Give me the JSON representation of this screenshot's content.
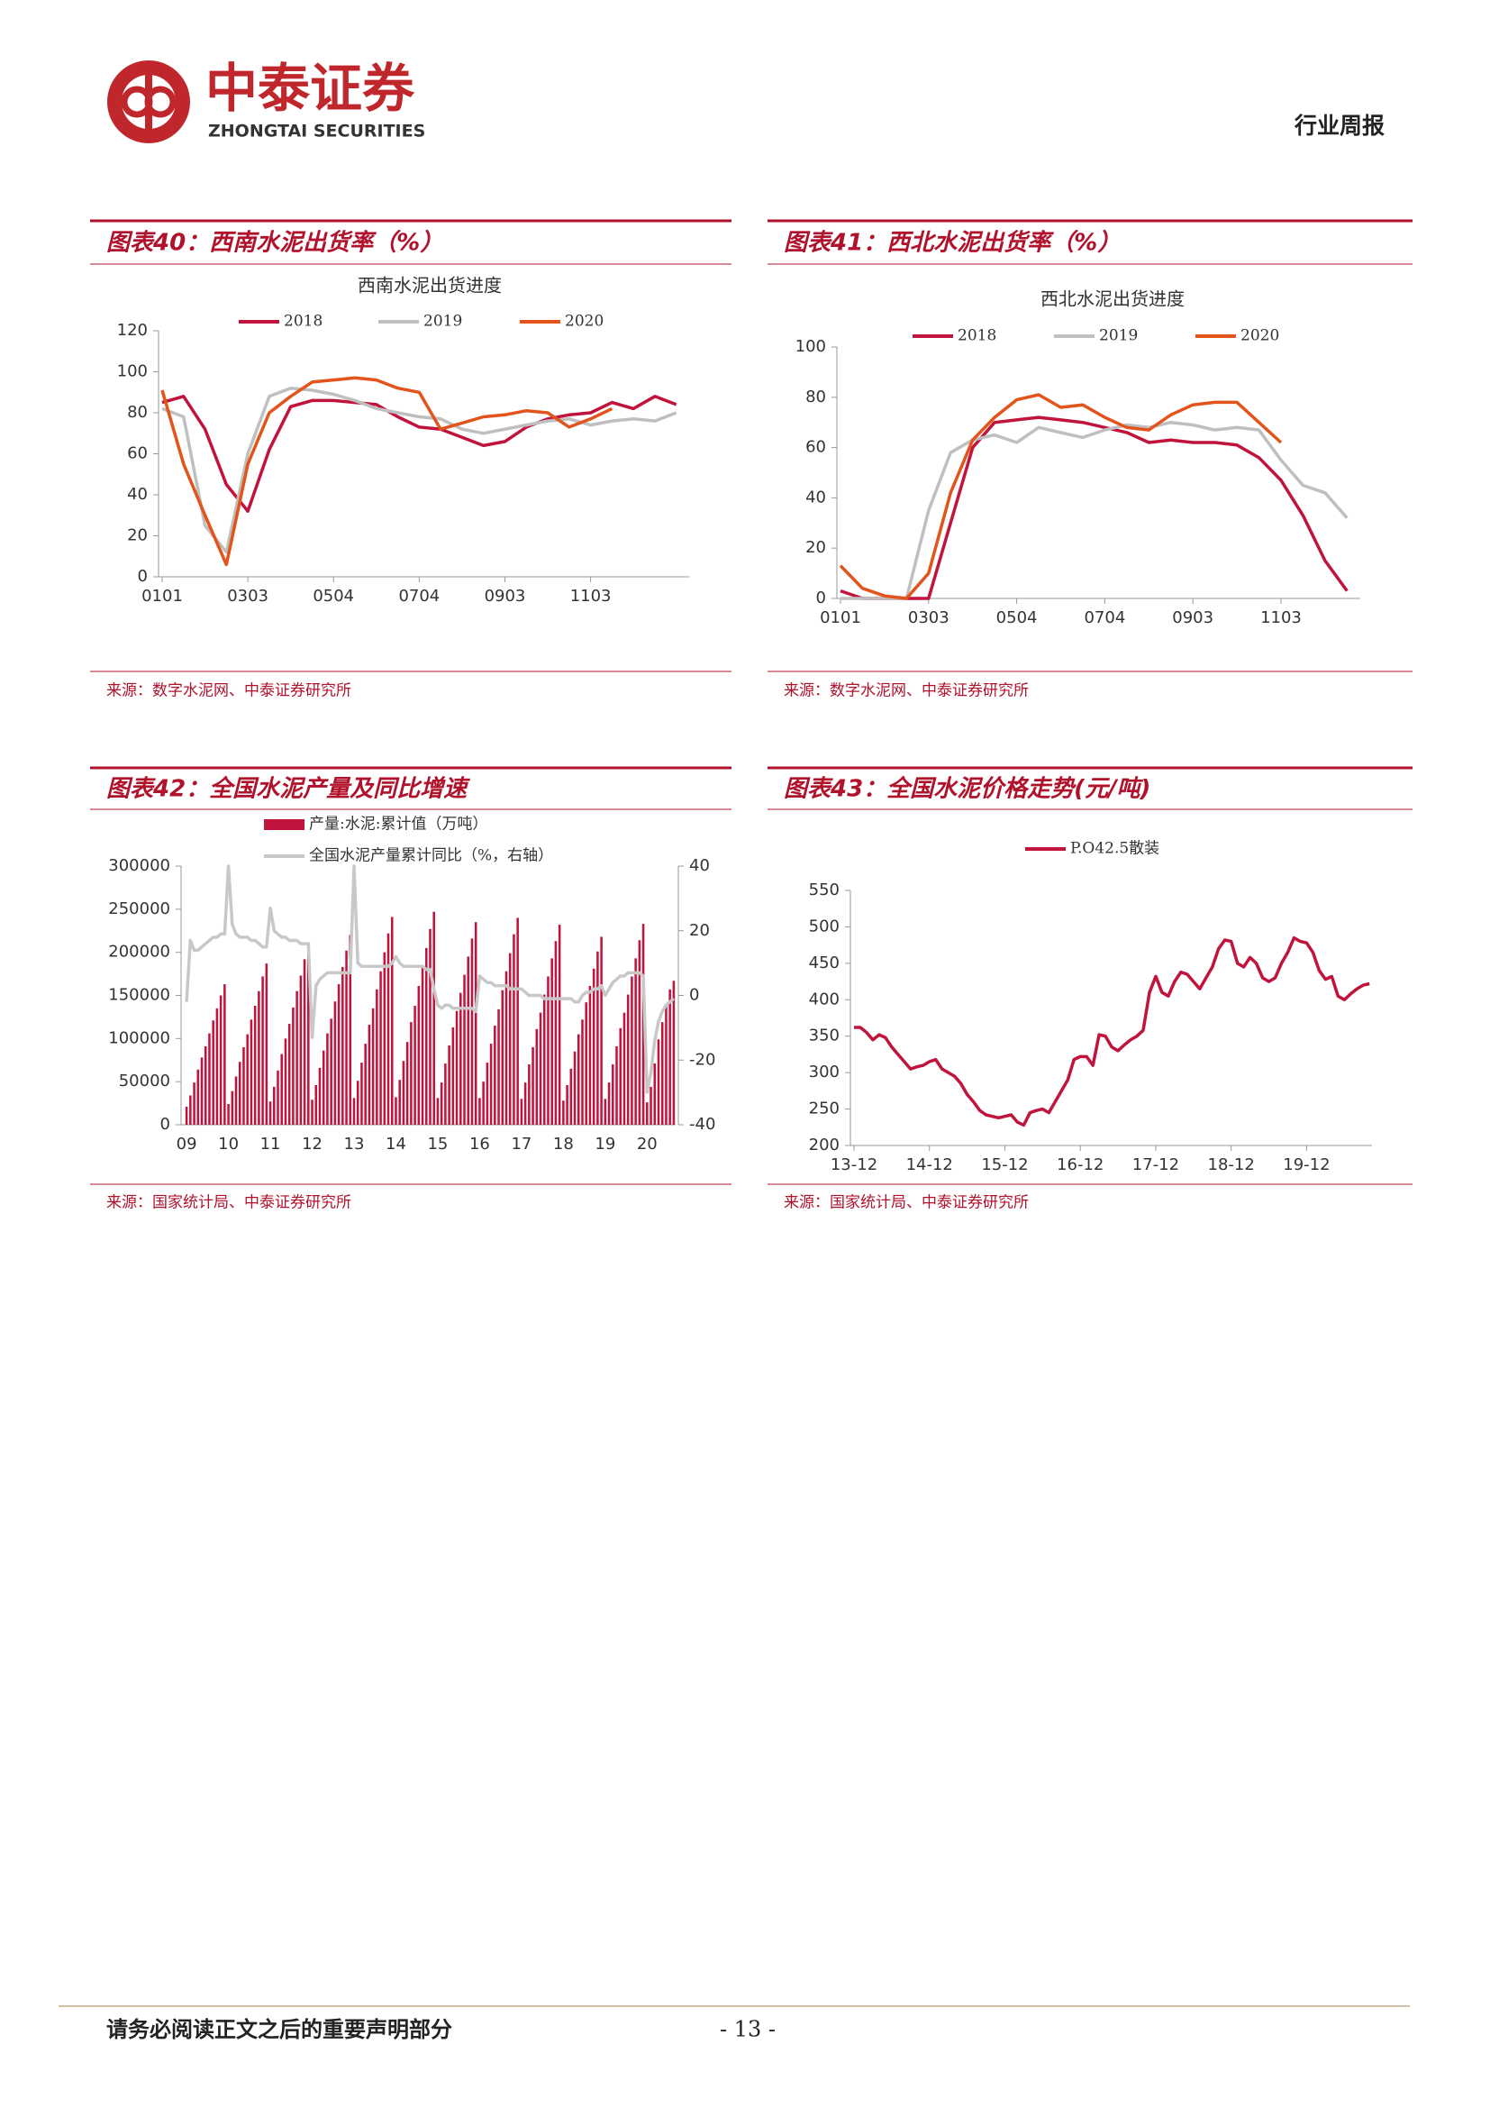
{
  "header": {
    "brand": "中泰证券",
    "brand_en": "ZHONGTAI SECURITIES",
    "section": "行业周报"
  },
  "panels": [
    {
      "title": "图表40：西南水泥出货率（%）",
      "source": "来源：数字水泥网、中泰证券研究所"
    },
    {
      "title": "图表41：西北水泥出货率（%）",
      "source": "来源：数字水泥网、中泰证券研究所"
    },
    {
      "title": "图表42：全国水泥产量及同比增速",
      "source": "来源：国家统计局、中泰证券研究所"
    },
    {
      "title": "图表43：全国水泥价格走势(元/吨)",
      "source": "来源：国家统计局、中泰证券研究所"
    }
  ],
  "chart_data": [
    {
      "type": "line",
      "title": "西南水泥出货进度",
      "categories": [
        "0101",
        null,
        null,
        null,
        "0303",
        null,
        null,
        null,
        "0504",
        null,
        null,
        null,
        "0704",
        null,
        null,
        null,
        "0903",
        null,
        null,
        null,
        "1103",
        null,
        null,
        null,
        null
      ],
      "ylim": [
        0,
        120
      ],
      "yticks": [
        0,
        20,
        40,
        60,
        80,
        100,
        120
      ],
      "series": [
        {
          "name": "2018",
          "color": "#c0143c",
          "values": [
            85,
            88,
            72,
            45,
            32,
            62,
            83,
            86,
            86,
            85,
            84,
            78,
            73,
            72,
            68,
            64,
            66,
            73,
            77,
            79,
            80,
            85,
            82,
            88,
            84
          ]
        },
        {
          "name": "2019",
          "color": "#bfbfbf",
          "values": [
            82,
            78,
            25,
            12,
            60,
            88,
            92,
            91,
            89,
            86,
            82,
            80,
            78,
            77,
            72,
            70,
            72,
            74,
            76,
            77,
            74,
            76,
            77,
            76,
            80
          ]
        },
        {
          "name": "2020",
          "color": "#e2541b",
          "values": [
            91,
            55,
            30,
            6,
            55,
            80,
            88,
            95,
            96,
            97,
            96,
            92,
            90,
            72,
            75,
            78,
            79,
            81,
            80,
            73,
            77,
            82,
            null,
            null,
            null
          ]
        }
      ]
    },
    {
      "type": "line",
      "title": "西北水泥出货进度",
      "categories": [
        "0101",
        null,
        null,
        null,
        "0303",
        null,
        null,
        null,
        "0504",
        null,
        null,
        null,
        "0704",
        null,
        null,
        null,
        "0903",
        null,
        null,
        null,
        "1103",
        null,
        null,
        null
      ],
      "ylim": [
        0,
        100
      ],
      "yticks": [
        0,
        20,
        40,
        60,
        80,
        100
      ],
      "series": [
        {
          "name": "2018",
          "color": "#c0143c",
          "values": [
            3,
            0,
            0,
            0,
            0,
            30,
            60,
            70,
            71,
            72,
            71,
            70,
            68,
            66,
            62,
            63,
            62,
            62,
            61,
            56,
            47,
            33,
            15,
            3
          ]
        },
        {
          "name": "2019",
          "color": "#bfbfbf",
          "values": [
            0,
            0,
            0,
            0,
            35,
            58,
            63,
            65,
            62,
            68,
            66,
            64,
            67,
            69,
            68,
            70,
            69,
            67,
            68,
            67,
            55,
            45,
            42,
            32
          ]
        },
        {
          "name": "2020",
          "color": "#e2541b",
          "values": [
            13,
            4,
            1,
            0,
            10,
            42,
            63,
            72,
            79,
            81,
            76,
            77,
            72,
            68,
            67,
            73,
            77,
            78,
            78,
            70,
            62,
            null,
            null,
            null
          ]
        }
      ]
    },
    {
      "type": "bar",
      "categories": [
        "09",
        null,
        null,
        null,
        null,
        null,
        null,
        null,
        null,
        null,
        null,
        "10",
        null,
        null,
        null,
        null,
        null,
        null,
        null,
        null,
        null,
        null,
        "11",
        null,
        null,
        null,
        null,
        null,
        null,
        null,
        null,
        null,
        null,
        "12",
        null,
        null,
        null,
        null,
        null,
        null,
        null,
        null,
        null,
        null,
        "13",
        null,
        null,
        null,
        null,
        null,
        null,
        null,
        null,
        null,
        null,
        "14",
        null,
        null,
        null,
        null,
        null,
        null,
        null,
        null,
        null,
        null,
        "15",
        null,
        null,
        null,
        null,
        null,
        null,
        null,
        null,
        null,
        null,
        "16",
        null,
        null,
        null,
        null,
        null,
        null,
        null,
        null,
        null,
        null,
        "17",
        null,
        null,
        null,
        null,
        null,
        null,
        null,
        null,
        null,
        null,
        "18",
        null,
        null,
        null,
        null,
        null,
        null,
        null,
        null,
        null,
        null,
        "19",
        null,
        null,
        null,
        null,
        null,
        null,
        null,
        null,
        null,
        null,
        "20",
        null,
        null,
        null,
        null,
        null,
        null,
        null
      ],
      "ylim": [
        0,
        300000
      ],
      "yticks": [
        0,
        50000,
        100000,
        150000,
        200000,
        250000,
        300000
      ],
      "y2lim": [
        -40,
        40
      ],
      "y2ticks": [
        -40,
        -20,
        0,
        20,
        40
      ],
      "series": [
        {
          "name": "产量:水泥:累计值（万吨）",
          "color": "#c0143c",
          "values": [
            21000,
            34000,
            49000,
            64000,
            78000,
            91000,
            106000,
            121000,
            135000,
            150000,
            163000,
            24000,
            39000,
            56000,
            73000,
            90000,
            105000,
            122000,
            138000,
            155000,
            172000,
            187000,
            27000,
            44000,
            63000,
            82000,
            100000,
            117000,
            136000,
            155000,
            173000,
            192000,
            209000,
            29000,
            46000,
            66000,
            86000,
            106000,
            123000,
            143000,
            163000,
            183000,
            202000,
            220000,
            31000,
            51000,
            72000,
            94000,
            116000,
            135000,
            157000,
            178000,
            200000,
            222000,
            241000,
            32000,
            52000,
            74000,
            96000,
            119000,
            138000,
            161000,
            183000,
            205000,
            227000,
            247000,
            31000,
            49000,
            71000,
            92000,
            113000,
            132000,
            153000,
            174000,
            195000,
            216000,
            235000,
            31000,
            50000,
            72000,
            94000,
            115000,
            134000,
            156000,
            178000,
            199000,
            221000,
            240000,
            30000,
            49000,
            70000,
            90000,
            111000,
            130000,
            151000,
            172000,
            193000,
            213000,
            232000,
            28000,
            46000,
            65000,
            85000,
            105000,
            122000,
            142000,
            161000,
            181000,
            201000,
            218000,
            30000,
            49000,
            70000,
            91000,
            112000,
            130000,
            151000,
            172000,
            193000,
            214000,
            233000,
            26000,
            44000,
            71000,
            99000,
            119000,
            138000,
            157000,
            167000
          ]
        },
        {
          "name": "全国水泥产量累计同比（%，右轴）",
          "color": "#c8c8c8",
          "axis": "y2",
          "values": [
            -2,
            17,
            14,
            14,
            15,
            16,
            17,
            18,
            18,
            19,
            19,
            40,
            22,
            19,
            18,
            18,
            18,
            17,
            17,
            16,
            15,
            15,
            27,
            20,
            19,
            18,
            18,
            17,
            17,
            17,
            16,
            16,
            16,
            -13,
            3,
            5,
            6,
            7,
            7,
            7,
            7,
            7,
            7,
            7,
            40,
            10,
            9,
            9,
            9,
            9,
            9,
            9,
            9,
            9,
            10,
            12,
            10,
            9,
            9,
            9,
            9,
            9,
            9,
            8,
            8,
            2,
            -3,
            -4,
            -3,
            -3,
            -4,
            -4,
            -4,
            -4,
            -4,
            -4,
            -5,
            6,
            5,
            4,
            4,
            3,
            3,
            3,
            3,
            2,
            2,
            2,
            2,
            1,
            0,
            0,
            0,
            0,
            -1,
            -1,
            -1,
            -1,
            -1,
            -1,
            -1,
            -1,
            -2,
            -2,
            0,
            1,
            1,
            2,
            2,
            3,
            0,
            2,
            4,
            5,
            6,
            6,
            7,
            7,
            7,
            7,
            6,
            -30,
            -24,
            -14,
            -8,
            -5,
            -3,
            -2,
            -1
          ]
        }
      ]
    },
    {
      "type": "line",
      "categories": [
        "13-12",
        null,
        null,
        null,
        null,
        null,
        null,
        null,
        null,
        null,
        null,
        null,
        "14-12",
        null,
        null,
        null,
        null,
        null,
        null,
        null,
        null,
        null,
        null,
        null,
        "15-12",
        null,
        null,
        null,
        null,
        null,
        null,
        null,
        null,
        null,
        null,
        null,
        "16-12",
        null,
        null,
        null,
        null,
        null,
        null,
        null,
        null,
        null,
        null,
        null,
        "17-12",
        null,
        null,
        null,
        null,
        null,
        null,
        null,
        null,
        null,
        null,
        null,
        "18-12",
        null,
        null,
        null,
        null,
        null,
        null,
        null,
        null,
        null,
        null,
        null,
        "19-12",
        null,
        null,
        null,
        null,
        null,
        null,
        null,
        null,
        null,
        null
      ],
      "ylim": [
        200,
        550
      ],
      "yticks": [
        200,
        250,
        300,
        350,
        400,
        450,
        500,
        550
      ],
      "series": [
        {
          "name": "P.O42.5散装",
          "color": "#c0143c",
          "values": [
            362,
            362,
            355,
            345,
            352,
            348,
            335,
            325,
            315,
            305,
            308,
            310,
            315,
            318,
            305,
            300,
            295,
            285,
            270,
            260,
            248,
            242,
            240,
            238,
            240,
            242,
            232,
            228,
            245,
            248,
            250,
            245,
            260,
            275,
            290,
            318,
            322,
            322,
            310,
            352,
            350,
            335,
            330,
            338,
            345,
            350,
            358,
            410,
            432,
            410,
            405,
            425,
            438,
            435,
            425,
            415,
            430,
            445,
            470,
            482,
            480,
            450,
            445,
            458,
            450,
            430,
            425,
            430,
            450,
            465,
            485,
            480,
            478,
            465,
            440,
            428,
            432,
            405,
            400,
            408,
            415,
            420,
            422
          ]
        }
      ]
    }
  ],
  "footer": {
    "notice": "请务必阅读正文之后的重要声明部分",
    "page": "- 13 -"
  }
}
